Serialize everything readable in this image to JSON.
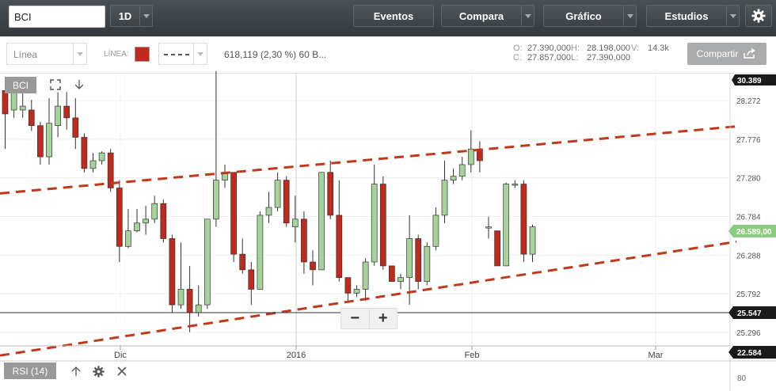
{
  "toolbar": {
    "symbol_value": "BCI",
    "period": "1D",
    "events_label": "Eventos",
    "compare_label": "Compara",
    "chart_label": "Gráfico",
    "studies_label": "Estudios",
    "settings_icon": "gear-icon"
  },
  "secondary": {
    "chart_type": "Línea",
    "line_label": "LÍNEA:",
    "line_color": "#c0291b",
    "info_text": "618,119 (2,30 %) 60 B...",
    "ohlc": {
      "o_label": "O:",
      "o_value": "27.390,000",
      "h_label": "H:",
      "h_value": "28.198,000",
      "v_label": "V:",
      "v_value": "14.3k",
      "c_label": "C:",
      "c_value": "27.857,000",
      "l_label": "L:",
      "l_value": "27.390,000"
    },
    "share_label": "Compartir"
  },
  "chart": {
    "symbol_tag": "BCI",
    "rsi_tag": "RSI (14)",
    "zoom_minus": "−",
    "zoom_plus": "+",
    "price_labels": [
      "28.272",
      "27.776",
      "27.280",
      "26.784",
      "26.288",
      "25.792",
      "25.296"
    ],
    "top_tag": "30.389",
    "bottom_tag": "22.584",
    "current_tag": "26.589,00",
    "line_tag": "25.547",
    "x_labels": [
      "Dic",
      "2016",
      "Feb",
      "Mar"
    ],
    "rsi_axis_label": "80",
    "up_color": "#a6d39a",
    "down_color": "#c0291b",
    "trend_color": "#c0391b"
  },
  "chart_data": {
    "type": "candlestick",
    "y_ticks": [
      28272,
      27776,
      27280,
      26784,
      26288,
      25792,
      25296
    ],
    "support_level": 25547,
    "candles": [
      [
        -1,
        28400,
        28100,
        28350,
        27650
      ],
      [
        1,
        28150,
        28420,
        28480,
        28050
      ],
      [
        1,
        28150,
        28200,
        28380,
        28050
      ],
      [
        -1,
        28150,
        27950,
        28280,
        27880
      ],
      [
        -1,
        27950,
        27550,
        28000,
        27450
      ],
      [
        1,
        27550,
        27980,
        28300,
        27450
      ],
      [
        1,
        27950,
        28200,
        28380,
        27800
      ],
      [
        -1,
        28200,
        28050,
        28380,
        27900
      ],
      [
        -1,
        28050,
        27800,
        28300,
        27650
      ],
      [
        -1,
        27800,
        27400,
        27850,
        27350
      ],
      [
        1,
        27400,
        27500,
        27600,
        27350
      ],
      [
        1,
        27500,
        27600,
        27620,
        27450
      ],
      [
        -1,
        27600,
        27150,
        27650,
        27100
      ],
      [
        -1,
        27150,
        26400,
        27250,
        26200
      ],
      [
        1,
        26400,
        26600,
        26880,
        26380
      ],
      [
        1,
        26600,
        26700,
        26880,
        26580
      ],
      [
        1,
        26700,
        26750,
        26920,
        26550
      ],
      [
        1,
        26750,
        26950,
        27050,
        26700
      ],
      [
        -1,
        26950,
        26500,
        27000,
        26450
      ],
      [
        -1,
        26500,
        25650,
        26550,
        25550
      ],
      [
        1,
        25650,
        25850,
        26450,
        25600
      ],
      [
        -1,
        25850,
        25550,
        26150,
        25300
      ],
      [
        1,
        25550,
        25650,
        25900,
        25500
      ],
      [
        1,
        25650,
        26750,
        26750,
        25600
      ],
      [
        1,
        26750,
        27250,
        28650,
        26650
      ],
      [
        1,
        27250,
        27350,
        27450,
        27150
      ],
      [
        -1,
        27350,
        26300,
        27350,
        26200
      ],
      [
        -1,
        26300,
        26100,
        26500,
        26050
      ],
      [
        -1,
        26100,
        25850,
        26200,
        25650
      ],
      [
        1,
        25850,
        26800,
        26850,
        25850
      ],
      [
        1,
        26800,
        26900,
        27100,
        26700
      ],
      [
        1,
        26900,
        27250,
        27350,
        26850
      ],
      [
        -1,
        27250,
        26700,
        27300,
        26650
      ],
      [
        1,
        26650,
        26750,
        27050,
        26450
      ],
      [
        -1,
        26750,
        26200,
        26850,
        26050
      ],
      [
        -1,
        26200,
        26100,
        26350,
        25900
      ],
      [
        1,
        26100,
        27350,
        27350,
        26100
      ],
      [
        -1,
        27350,
        26800,
        27500,
        26750
      ],
      [
        -1,
        26800,
        26000,
        27250,
        25950
      ],
      [
        -1,
        26000,
        25800,
        25850,
        25700
      ],
      [
        1,
        25800,
        25850,
        25900,
        25750
      ],
      [
        1,
        25850,
        26200,
        26250,
        25700
      ],
      [
        1,
        26200,
        27200,
        27450,
        26150
      ],
      [
        -1,
        27200,
        26150,
        27300,
        26100
      ],
      [
        -1,
        26150,
        25950,
        26150,
        25950
      ],
      [
        1,
        25950,
        26000,
        26050,
        25850
      ],
      [
        1,
        26000,
        26500,
        26800,
        25650
      ],
      [
        -1,
        26500,
        25950,
        26550,
        25850
      ],
      [
        1,
        25950,
        26400,
        26450,
        25900
      ],
      [
        1,
        26400,
        26800,
        26900,
        26350
      ],
      [
        1,
        26800,
        27250,
        27500,
        26700
      ],
      [
        1,
        27250,
        27300,
        27400,
        27200
      ],
      [
        1,
        27300,
        27450,
        27550,
        27250
      ],
      [
        1,
        27450,
        27650,
        27890,
        27350
      ],
      [
        -1,
        27650,
        27500,
        27750,
        27350
      ],
      [
        -1,
        26650,
        26650,
        26780,
        26500
      ],
      [
        -1,
        26600,
        26150,
        26600,
        26150
      ],
      [
        1,
        26150,
        27200,
        27220,
        26150
      ],
      [
        1,
        27200,
        27200,
        27250,
        27150
      ],
      [
        -1,
        27200,
        26300,
        27250,
        26200
      ],
      [
        1,
        26300,
        26650,
        26680,
        26200
      ]
    ],
    "trendlines": [
      {
        "from": [
          0,
          27080
        ],
        "to": [
          930,
          27940
        ]
      },
      {
        "from": [
          0,
          25000
        ],
        "to": [
          930,
          26460
        ]
      }
    ]
  }
}
